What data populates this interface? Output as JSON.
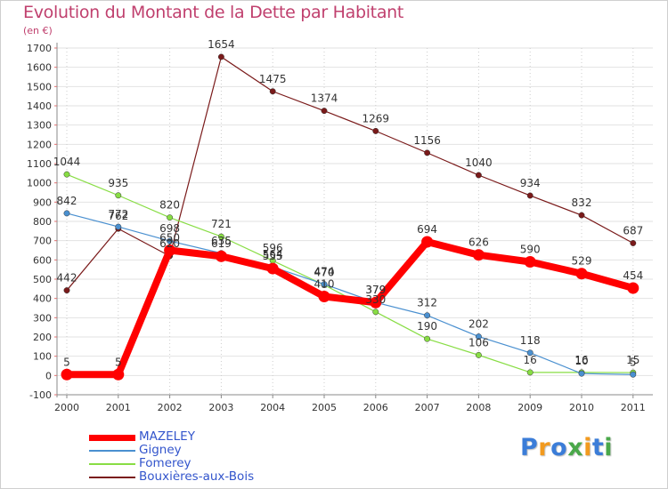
{
  "title": "Evolution du Montant de la Dette par Habitant",
  "subtitle": "(en €)",
  "logo": {
    "letters": [
      {
        "char": "P",
        "color": "#3b7dd8"
      },
      {
        "char": "r",
        "color": "#f29a1e"
      },
      {
        "char": "o",
        "color": "#3b7dd8"
      },
      {
        "char": "x",
        "color": "#4aa84a"
      },
      {
        "char": "i",
        "color": "#f29a1e"
      },
      {
        "char": "t",
        "color": "#3b7dd8"
      },
      {
        "char": "i",
        "color": "#4aa84a"
      }
    ]
  },
  "chart_data": {
    "type": "line",
    "title": "Evolution du Montant de la Dette par Habitant",
    "subtitle": "(en €)",
    "xlabel": "",
    "ylabel": "",
    "ylim": [
      -100,
      1700
    ],
    "yticks": [
      "-100",
      "0",
      "100",
      "200",
      "300",
      "400",
      "500",
      "600",
      "700",
      "800",
      "900",
      "1000",
      "1100",
      "1200",
      "1300",
      "1400",
      "1500",
      "1600",
      "1700"
    ],
    "yticks_values": [
      -100,
      0,
      100,
      200,
      300,
      400,
      500,
      600,
      700,
      800,
      900,
      1000,
      1100,
      1200,
      1300,
      1400,
      1500,
      1600,
      1700
    ],
    "categories": [
      "2000",
      "2001",
      "2002",
      "2003",
      "2004",
      "2005",
      "2006",
      "2007",
      "2008",
      "2009",
      "2010",
      "2011"
    ],
    "grid": true,
    "legend_position": "bottom-left",
    "series": [
      {
        "name": "MAZELEY",
        "color": "#ff0000",
        "values": [
          5,
          5,
          650,
          619,
          555,
          410,
          379,
          694,
          626,
          590,
          529,
          454
        ],
        "labels": [
          "5",
          "5",
          "650",
          "619",
          "555",
          "410",
          "379",
          "694",
          "626",
          "590",
          "529",
          "454"
        ]
      },
      {
        "name": "Gigney",
        "color": "#4a90d0",
        "values": [
          842,
          772,
          698,
          635,
          564,
          474,
          379,
          312,
          202,
          118,
          10,
          5
        ],
        "labels": [
          "842",
          "772",
          "698",
          "635",
          "564",
          "474",
          "379",
          "312",
          "202",
          "118",
          "10",
          "5"
        ]
      },
      {
        "name": "Fomerey",
        "color": "#88dd44",
        "values": [
          1044,
          935,
          820,
          721,
          596,
          470,
          330,
          190,
          106,
          16,
          16,
          15
        ],
        "labels": [
          "1044",
          "935",
          "820",
          "721",
          "596",
          "470",
          "330",
          "190",
          "106",
          "16",
          "16",
          "15"
        ]
      },
      {
        "name": "Bouxières-aux-Bois",
        "color": "#7a1a1a",
        "values": [
          442,
          762,
          620,
          1654,
          1475,
          1374,
          1269,
          1156,
          1040,
          934,
          832,
          687
        ],
        "labels": [
          "442",
          "762",
          "620",
          "1654",
          "1475",
          "1374",
          "1269",
          "1156",
          "1040",
          "934",
          "832",
          "687"
        ]
      }
    ]
  }
}
